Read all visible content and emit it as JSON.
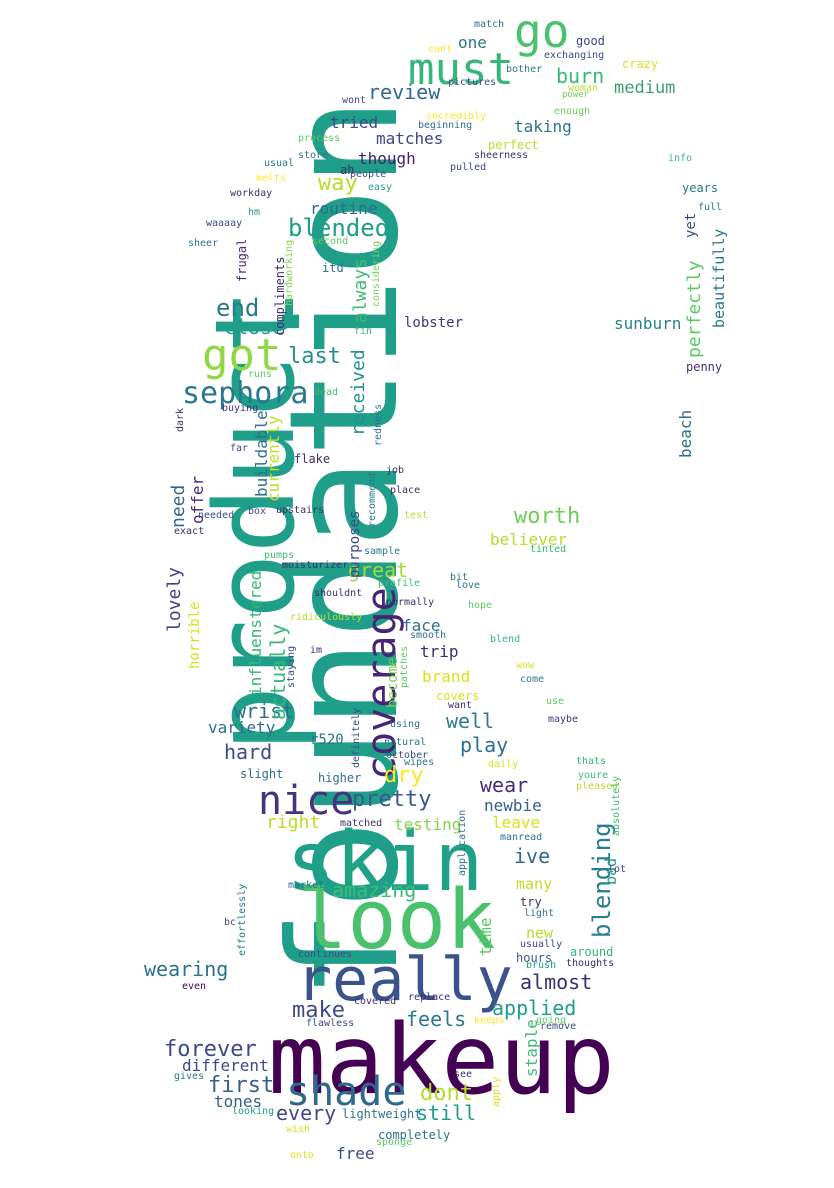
{
  "words": [
    {
      "text": "foundation",
      "color": "#1f9e89"
    },
    {
      "text": "product",
      "color": "#1f9e89"
    },
    {
      "text": "makeup",
      "color": "#440154"
    },
    {
      "text": "skin",
      "color": "#1fa187"
    },
    {
      "text": "look",
      "color": "#4ac16d"
    },
    {
      "text": "really",
      "color": "#3b528b"
    },
    {
      "text": "go",
      "color": "#4ac16d"
    },
    {
      "text": "must",
      "color": "#35b779"
    },
    {
      "text": "got",
      "color": "#90d743"
    },
    {
      "text": "nice",
      "color": "#46327e"
    },
    {
      "text": "shade",
      "color": "#31688e"
    },
    {
      "text": "coverage",
      "color": "#482475"
    },
    {
      "text": "sephora",
      "color": "#2a788e"
    },
    {
      "text": "blended",
      "color": "#1f9e89"
    },
    {
      "text": "review",
      "color": "#31688e"
    },
    {
      "text": "burn",
      "color": "#35b779"
    },
    {
      "text": "medium",
      "color": "#3e9e72"
    },
    {
      "text": "way",
      "color": "#b5de2b"
    },
    {
      "text": "end",
      "color": "#2a788e"
    },
    {
      "text": "close",
      "color": "#1f9e89"
    },
    {
      "text": "last",
      "color": "#21918c"
    },
    {
      "text": "pretty",
      "color": "#38598c"
    },
    {
      "text": "dry",
      "color": "#fde725"
    },
    {
      "text": "worth",
      "color": "#6ece58"
    },
    {
      "text": "blending",
      "color": "#277f8e"
    },
    {
      "text": "make",
      "color": "#3e4989"
    },
    {
      "text": "forever",
      "color": "#3e4989"
    },
    {
      "text": "first",
      "color": "#355f8d"
    },
    {
      "text": "wearing",
      "color": "#2c728e"
    },
    {
      "text": "applied",
      "color": "#1f9e89"
    },
    {
      "text": "almost",
      "color": "#3b2f6f"
    },
    {
      "text": "dont",
      "color": "#b5de2b"
    },
    {
      "text": "still",
      "color": "#1f9e89"
    },
    {
      "text": "every",
      "color": "#3e4989"
    },
    {
      "text": "feels",
      "color": "#2a788e"
    },
    {
      "text": "amazing",
      "color": "#3dbc74"
    },
    {
      "text": "wrist",
      "color": "#2c728e"
    },
    {
      "text": "hard",
      "color": "#3e4989"
    },
    {
      "text": "play",
      "color": "#2c728e"
    },
    {
      "text": "well",
      "color": "#287d8e"
    },
    {
      "text": "wear",
      "color": "#472d7b"
    },
    {
      "text": "ive",
      "color": "#31688e"
    },
    {
      "text": "great",
      "color": "#a2da37"
    },
    {
      "text": "perfectly",
      "color": "#5ec962"
    },
    {
      "text": "beautifully",
      "color": "#2a788e"
    },
    {
      "text": "sunburn",
      "color": "#26828e"
    },
    {
      "text": "beach",
      "color": "#2c728e"
    },
    {
      "text": "lovely",
      "color": "#433e85"
    },
    {
      "text": "need",
      "color": "#31688e"
    },
    {
      "text": "actually",
      "color": "#35b779"
    },
    {
      "text": "received",
      "color": "#21918c"
    },
    {
      "text": "always",
      "color": "#3dbc74"
    },
    {
      "text": "routine",
      "color": "#306a8e"
    },
    {
      "text": "tried",
      "color": "#3e4989"
    },
    {
      "text": "matches",
      "color": "#414487"
    },
    {
      "text": "though",
      "color": "#481f70"
    },
    {
      "text": "taking",
      "color": "#2a788e"
    },
    {
      "text": "one",
      "color": "#2a788e"
    },
    {
      "text": "right",
      "color": "#b8de29"
    },
    {
      "text": "testing",
      "color": "#86d549"
    },
    {
      "text": "leave",
      "color": "#d8e219"
    },
    {
      "text": "newbie",
      "color": "#355f8d"
    },
    {
      "text": "many",
      "color": "#c0df25"
    },
    {
      "text": "new",
      "color": "#b5de2b"
    },
    {
      "text": "hours",
      "color": "#38598c"
    },
    {
      "text": "staple",
      "color": "#3dbc74"
    },
    {
      "text": "bad",
      "color": "#1f9e89"
    },
    {
      "text": "time",
      "color": "#58c765"
    },
    {
      "text": "different",
      "color": "#3e4989"
    },
    {
      "text": "tones",
      "color": "#355f8d"
    },
    {
      "text": "free",
      "color": "#3e4989"
    },
    {
      "text": "variety",
      "color": "#2e6e8e"
    },
    {
      "text": "trip",
      "color": "#3b2f6f"
    },
    {
      "text": "face",
      "color": "#2c728e"
    },
    {
      "text": "brand",
      "color": "#d8e219"
    },
    {
      "text": "believer",
      "color": "#b5de2b"
    },
    {
      "text": "lobster",
      "color": "#46327e"
    },
    {
      "text": "influenstered",
      "color": "#35b779"
    },
    {
      "text": "horrible",
      "color": "#d8e219"
    },
    {
      "text": "offer",
      "color": "#482878"
    },
    {
      "text": "buildable",
      "color": "#2c728e"
    },
    {
      "text": "currently",
      "color": "#bddf26"
    },
    {
      "text": "purposes",
      "color": "#3e4989"
    },
    {
      "text": "become",
      "color": "#7ad151"
    },
    {
      "text": "r520",
      "color": "#2c728e"
    },
    {
      "text": "slight",
      "color": "#2e6e8e"
    },
    {
      "text": "higher",
      "color": "#2e6e8e"
    },
    {
      "text": "years",
      "color": "#2a788e"
    },
    {
      "text": "yet",
      "color": "#3e4989"
    },
    {
      "text": "full",
      "color": "#2a788e"
    },
    {
      "text": "penny",
      "color": "#46327e"
    },
    {
      "text": "good",
      "color": "#414487"
    },
    {
      "text": "crazy",
      "color": "#d2e21b"
    },
    {
      "text": "match",
      "color": "#2c728e"
    },
    {
      "text": "exchanging",
      "color": "#3e4989"
    },
    {
      "text": "woman",
      "color": "#b5de2b"
    },
    {
      "text": "power",
      "color": "#70cf57"
    },
    {
      "text": "enough",
      "color": "#6ece58"
    },
    {
      "text": "bother",
      "color": "#2a788e"
    },
    {
      "text": "pictures",
      "color": "#3e4989"
    },
    {
      "text": "cant",
      "color": "#fde725"
    },
    {
      "text": "wont",
      "color": "#3e4989"
    },
    {
      "text": "incredibly",
      "color": "#fde725"
    },
    {
      "text": "beginning",
      "color": "#2c728e"
    },
    {
      "text": "perfect",
      "color": "#b5de2b"
    },
    {
      "text": "sheerness",
      "color": "#3b2f6f"
    },
    {
      "text": "pulled",
      "color": "#3e4989"
    },
    {
      "text": "info",
      "color": "#35b779"
    },
    {
      "text": "process",
      "color": "#5ec962"
    },
    {
      "text": "store",
      "color": "#2c728e"
    },
    {
      "text": "usual",
      "color": "#2a788e"
    },
    {
      "text": "ah",
      "color": "#3b2f6f"
    },
    {
      "text": "people",
      "color": "#3e4989"
    },
    {
      "text": "easy",
      "color": "#1f9e89"
    },
    {
      "text": "melts",
      "color": "#fde725"
    },
    {
      "text": "workday",
      "color": "#3b2f6f"
    },
    {
      "text": "hm",
      "color": "#1f9e89"
    },
    {
      "text": "waaaay",
      "color": "#3e4989"
    },
    {
      "text": "sheer",
      "color": "#2c728e"
    },
    {
      "text": "frugal",
      "color": "#482878"
    },
    {
      "text": "compliments",
      "color": "#3b2f6f"
    },
    {
      "text": "hardworking",
      "color": "#86d549"
    },
    {
      "text": "second",
      "color": "#5ec962"
    },
    {
      "text": "itd",
      "color": "#2c728e"
    },
    {
      "text": "considering",
      "color": "#7ad151"
    },
    {
      "text": "fin",
      "color": "#35b779"
    },
    {
      "text": "runs",
      "color": "#5ec962"
    },
    {
      "text": "dead",
      "color": "#3dbc74"
    },
    {
      "text": "buying",
      "color": "#46327e"
    },
    {
      "text": "redness",
      "color": "#2c728e"
    },
    {
      "text": "dark",
      "color": "#3b2f6f"
    },
    {
      "text": "far",
      "color": "#3e4989"
    },
    {
      "text": "flake",
      "color": "#3b2f6f"
    },
    {
      "text": "job",
      "color": "#3b2f6f"
    },
    {
      "text": "recommend",
      "color": "#2a788e"
    },
    {
      "text": "place",
      "color": "#3b2f6f"
    },
    {
      "text": "box",
      "color": "#3e4989"
    },
    {
      "text": "upstairs",
      "color": "#3b2f6f"
    },
    {
      "text": "needed",
      "color": "#3e4989"
    },
    {
      "text": "test",
      "color": "#b5de2b"
    },
    {
      "text": "exact",
      "color": "#3b2f6f"
    },
    {
      "text": "tinted",
      "color": "#35b779"
    },
    {
      "text": "sample",
      "color": "#2a788e"
    },
    {
      "text": "pumps",
      "color": "#3dbc74"
    },
    {
      "text": "moisturizer",
      "color": "#3b2f6f"
    },
    {
      "text": "bit",
      "color": "#2c728e"
    },
    {
      "text": "profile",
      "color": "#3dbc74"
    },
    {
      "text": "love",
      "color": "#2c728e"
    },
    {
      "text": "shouldnt",
      "color": "#3b2f6f"
    },
    {
      "text": "normally",
      "color": "#3b2f6f"
    },
    {
      "text": "hope",
      "color": "#5ec962"
    },
    {
      "text": "ridiculously",
      "color": "#b5de2b"
    },
    {
      "text": "smooth",
      "color": "#2c728e"
    },
    {
      "text": "blend",
      "color": "#35b779"
    },
    {
      "text": "staying",
      "color": "#3e4989"
    },
    {
      "text": "im",
      "color": "#3b2f6f"
    },
    {
      "text": "patches",
      "color": "#5ec962"
    },
    {
      "text": "wow",
      "color": "#d8e219"
    },
    {
      "text": "come",
      "color": "#2a788e"
    },
    {
      "text": "covers",
      "color": "#d8e219"
    },
    {
      "text": "want",
      "color": "#3b2f6f"
    },
    {
      "text": "use",
      "color": "#5ec962"
    },
    {
      "text": "maybe",
      "color": "#46327e"
    },
    {
      "text": "definitely",
      "color": "#3e4989"
    },
    {
      "text": "using",
      "color": "#2c728e"
    },
    {
      "text": "natural",
      "color": "#2c728e"
    },
    {
      "text": "october",
      "color": "#3e4989"
    },
    {
      "text": "wipes",
      "color": "#2a788e"
    },
    {
      "text": "daily",
      "color": "#d8e219"
    },
    {
      "text": "thats",
      "color": "#35b779"
    },
    {
      "text": "youre",
      "color": "#3dbc74"
    },
    {
      "text": "pleased",
      "color": "#b5de2b"
    },
    {
      "text": "absolutely",
      "color": "#3dbc74"
    },
    {
      "text": "matched",
      "color": "#3b2f6f"
    },
    {
      "text": "manread",
      "color": "#2c728e"
    },
    {
      "text": "application",
      "color": "#2c728e"
    },
    {
      "text": "lot",
      "color": "#3e4989"
    },
    {
      "text": "market",
      "color": "#2c728e"
    },
    {
      "text": "effortlessly",
      "color": "#2a788e"
    },
    {
      "text": "try",
      "color": "#3b2f6f"
    },
    {
      "text": "light",
      "color": "#2c728e"
    },
    {
      "text": "bc",
      "color": "#3e4989"
    },
    {
      "text": "usually",
      "color": "#3e4989"
    },
    {
      "text": "around",
      "color": "#35b779"
    },
    {
      "text": "continues",
      "color": "#3e4989"
    },
    {
      "text": "brush",
      "color": "#1f9e89"
    },
    {
      "text": "thoughts",
      "color": "#3b2f6f"
    },
    {
      "text": "even",
      "color": "#440154"
    },
    {
      "text": "covered",
      "color": "#3b2f6f"
    },
    {
      "text": "replace",
      "color": "#3b2f6f"
    },
    {
      "text": "flawless",
      "color": "#3e4989"
    },
    {
      "text": "keeps",
      "color": "#fde725"
    },
    {
      "text": "going",
      "color": "#5ec962"
    },
    {
      "text": "remove",
      "color": "#3e4989"
    },
    {
      "text": "gives",
      "color": "#2a788e"
    },
    {
      "text": "see",
      "color": "#3b2f6f"
    },
    {
      "text": "apply",
      "color": "#d8e219"
    },
    {
      "text": "looking",
      "color": "#1f9e89"
    },
    {
      "text": "lightweight",
      "color": "#2c728e"
    },
    {
      "text": "wish",
      "color": "#d8e219"
    },
    {
      "text": "completely",
      "color": "#2c728e"
    },
    {
      "text": "sponge",
      "color": "#5ec962"
    },
    {
      "text": "onto",
      "color": "#d8e219"
    }
  ]
}
